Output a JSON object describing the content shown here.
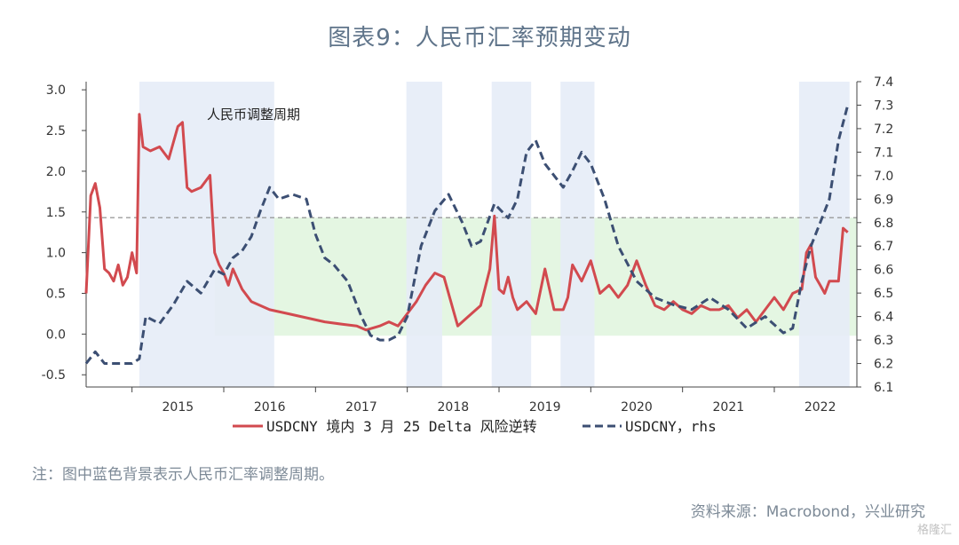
{
  "title": "图表9：人民币汇率预期变动",
  "note": "注：图中蓝色背景表示人民币汇率调整周期。",
  "source": "资料来源：Macrobond，兴业研究",
  "watermark": "格隆汇",
  "chart_data": {
    "type": "line",
    "title": "图表9：人民币汇率预期变动",
    "annotation": "人民币调整周期",
    "x_range": [
      2014.5,
      2022.9
    ],
    "x_tick_labels": [
      "2015",
      "2016",
      "2017",
      "2018",
      "2019",
      "2020",
      "2021",
      "2022"
    ],
    "y_left": {
      "range": [
        -0.65,
        3.1
      ],
      "ticks": [
        -0.5,
        0.0,
        0.5,
        1.0,
        1.5,
        2.0,
        2.5,
        3.0
      ],
      "tick_labels": [
        "-0.5",
        "0.0",
        "0.5",
        "1.0",
        "1.5",
        "2.0",
        "2.5",
        "3.0"
      ]
    },
    "y_right": {
      "range": [
        6.1,
        7.4
      ],
      "ticks": [
        6.1,
        6.2,
        6.3,
        6.4,
        6.5,
        6.6,
        6.7,
        6.8,
        6.9,
        7.0,
        7.1,
        7.2,
        7.3,
        7.4
      ],
      "tick_labels": [
        "6.1",
        "6.2",
        "6.3",
        "6.4",
        "6.5",
        "6.6",
        "6.7",
        "6.8",
        "6.9",
        "7.0",
        "7.1",
        "7.2",
        "7.3",
        "7.4"
      ]
    },
    "reference_line": {
      "y": 1.43,
      "style": "dashed",
      "color": "#888888"
    },
    "green_band": {
      "x_start": 2015.9,
      "x_end": 2022.9,
      "y_low": -0.02,
      "y_high": 1.43,
      "color": "#e4f6e2"
    },
    "blue_periods": [
      [
        2015.08,
        2016.55
      ],
      [
        2017.99,
        2018.38
      ],
      [
        2018.92,
        2019.35
      ],
      [
        2019.67,
        2020.04
      ],
      [
        2022.27,
        2022.82
      ]
    ],
    "colors": {
      "delta": "#d24a4f",
      "usdcny": "#3c4f73",
      "blue_band": "#e6ecf7"
    },
    "legend": {
      "position": "bottom"
    },
    "series": [
      {
        "name": "USDCNY 境内 3 月 25 Delta 风险逆转",
        "axis": "left",
        "style": "solid",
        "x": [
          2014.5,
          2014.55,
          2014.6,
          2014.65,
          2014.7,
          2014.75,
          2014.8,
          2014.85,
          2014.9,
          2014.95,
          2015.0,
          2015.05,
          2015.08,
          2015.12,
          2015.2,
          2015.3,
          2015.4,
          2015.5,
          2015.55,
          2015.6,
          2015.65,
          2015.75,
          2015.85,
          2015.9,
          2015.95,
          2016.0,
          2016.05,
          2016.1,
          2016.2,
          2016.3,
          2016.5,
          2016.7,
          2016.9,
          2017.1,
          2017.3,
          2017.45,
          2017.55,
          2017.7,
          2017.8,
          2017.9,
          2018.0,
          2018.1,
          2018.2,
          2018.3,
          2018.4,
          2018.5,
          2018.55,
          2018.65,
          2018.8,
          2018.9,
          2018.95,
          2019.0,
          2019.05,
          2019.1,
          2019.15,
          2019.2,
          2019.3,
          2019.4,
          2019.5,
          2019.6,
          2019.7,
          2019.75,
          2019.8,
          2019.9,
          2020.0,
          2020.1,
          2020.2,
          2020.3,
          2020.4,
          2020.5,
          2020.6,
          2020.7,
          2020.8,
          2020.9,
          2021.0,
          2021.1,
          2021.2,
          2021.3,
          2021.4,
          2021.5,
          2021.6,
          2021.7,
          2021.8,
          2021.9,
          2022.0,
          2022.1,
          2022.2,
          2022.3,
          2022.35,
          2022.4,
          2022.45,
          2022.5,
          2022.55,
          2022.6,
          2022.7,
          2022.75,
          2022.8
        ],
        "y": [
          0.5,
          1.7,
          1.85,
          1.55,
          0.8,
          0.75,
          0.65,
          0.85,
          0.6,
          0.7,
          1.0,
          0.75,
          2.7,
          2.3,
          2.25,
          2.3,
          2.15,
          2.55,
          2.6,
          1.8,
          1.75,
          1.8,
          1.95,
          1.0,
          0.85,
          0.75,
          0.6,
          0.8,
          0.55,
          0.4,
          0.3,
          0.25,
          0.2,
          0.15,
          0.12,
          0.1,
          0.05,
          0.1,
          0.15,
          0.1,
          0.25,
          0.4,
          0.6,
          0.75,
          0.7,
          0.3,
          0.1,
          0.2,
          0.35,
          0.8,
          1.45,
          0.55,
          0.5,
          0.7,
          0.45,
          0.3,
          0.4,
          0.25,
          0.8,
          0.3,
          0.3,
          0.45,
          0.85,
          0.65,
          0.9,
          0.5,
          0.6,
          0.45,
          0.6,
          0.9,
          0.6,
          0.35,
          0.3,
          0.4,
          0.3,
          0.25,
          0.35,
          0.3,
          0.3,
          0.35,
          0.2,
          0.3,
          0.15,
          0.3,
          0.45,
          0.3,
          0.5,
          0.55,
          1.0,
          1.1,
          0.7,
          0.6,
          0.5,
          0.65,
          0.65,
          1.3,
          1.25
        ]
      },
      {
        "name": "USDCNY，rhs",
        "axis": "right",
        "style": "dashed",
        "x": [
          2014.5,
          2014.6,
          2014.7,
          2014.8,
          2015.0,
          2015.08,
          2015.15,
          2015.3,
          2015.45,
          2015.6,
          2015.75,
          2015.9,
          2016.0,
          2016.1,
          2016.2,
          2016.3,
          2016.4,
          2016.5,
          2016.6,
          2016.75,
          2016.9,
          2017.0,
          2017.1,
          2017.2,
          2017.35,
          2017.5,
          2017.6,
          2017.7,
          2017.8,
          2017.9,
          2018.0,
          2018.15,
          2018.3,
          2018.45,
          2018.6,
          2018.7,
          2018.8,
          2018.95,
          2019.1,
          2019.2,
          2019.3,
          2019.4,
          2019.5,
          2019.6,
          2019.7,
          2019.8,
          2019.9,
          2020.0,
          2020.15,
          2020.3,
          2020.5,
          2020.7,
          2020.9,
          2021.1,
          2021.3,
          2021.5,
          2021.7,
          2021.9,
          2022.1,
          2022.2,
          2022.3,
          2022.4,
          2022.5,
          2022.6,
          2022.7,
          2022.8
        ],
        "y": [
          6.2,
          6.25,
          6.2,
          6.2,
          6.2,
          6.22,
          6.4,
          6.37,
          6.45,
          6.55,
          6.5,
          6.6,
          6.58,
          6.65,
          6.68,
          6.74,
          6.85,
          6.95,
          6.9,
          6.92,
          6.9,
          6.75,
          6.65,
          6.62,
          6.55,
          6.4,
          6.32,
          6.3,
          6.3,
          6.32,
          6.4,
          6.7,
          6.85,
          6.92,
          6.8,
          6.7,
          6.72,
          6.88,
          6.82,
          6.9,
          7.1,
          7.15,
          7.05,
          7.0,
          6.95,
          7.02,
          7.1,
          7.05,
          6.9,
          6.7,
          6.55,
          6.48,
          6.45,
          6.43,
          6.48,
          6.43,
          6.35,
          6.4,
          6.33,
          6.35,
          6.55,
          6.7,
          6.8,
          6.9,
          7.15,
          7.3
        ]
      }
    ]
  }
}
